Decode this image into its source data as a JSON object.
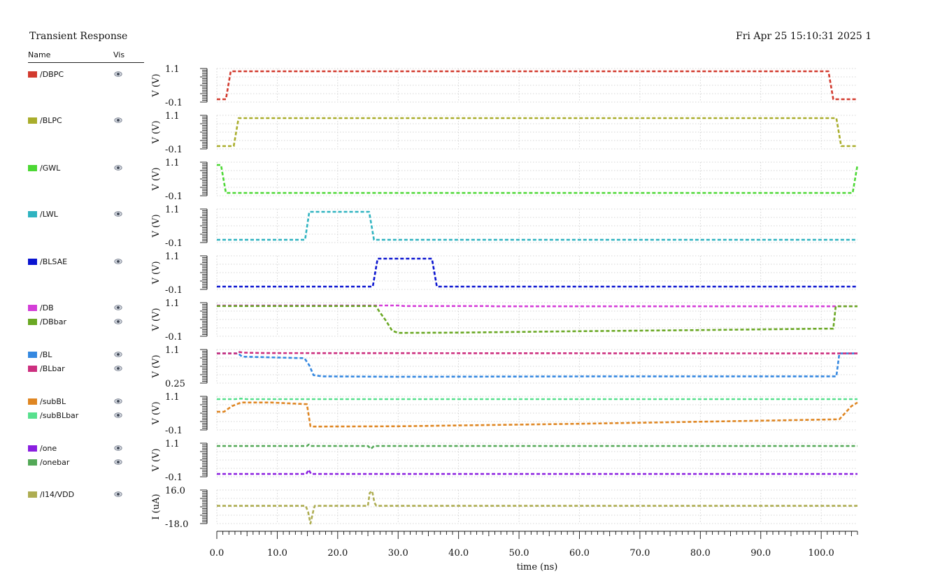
{
  "header": {
    "title": "Transient Response",
    "date": "Fri Apr 25 15:10:31 2025  1"
  },
  "legend": {
    "name_header": "Name",
    "vis_header": "Vis"
  },
  "chart_data": {
    "type": "line",
    "xlabel": "time (ns)",
    "xlim": [
      0,
      106
    ],
    "xticks": [
      "0.0",
      "10.0",
      "20.0",
      "30.0",
      "40.0",
      "50.0",
      "60.0",
      "70.0",
      "80.0",
      "90.0",
      "100.0"
    ],
    "xtick_values": [
      0,
      10,
      20,
      30,
      40,
      50,
      60,
      70,
      80,
      90,
      100
    ],
    "grid": true,
    "line_style": "dashed",
    "panels": [
      {
        "ylabel": "V (V)",
        "ymax_label": "1.1",
        "ymin_label": "-0.1",
        "ylim": [
          -0.1,
          1.1
        ],
        "series": [
          {
            "name": "/DBPC",
            "color": "#d23a2e",
            "points": [
              [
                0,
                0
              ],
              [
                1.5,
                0
              ],
              [
                2.3,
                1.0
              ],
              [
                101.2,
                1.0
              ],
              [
                102,
                0
              ],
              [
                106,
                0
              ]
            ]
          }
        ]
      },
      {
        "ylabel": "V (V)",
        "ymax_label": "1.1",
        "ymin_label": "-0.1",
        "ylim": [
          -0.1,
          1.1
        ],
        "series": [
          {
            "name": "/BLPC",
            "color": "#a9ad2b",
            "points": [
              [
                0,
                0
              ],
              [
                2.8,
                0
              ],
              [
                3.6,
                1.0
              ],
              [
                102.5,
                1.0
              ],
              [
                103.3,
                0
              ],
              [
                106,
                0
              ]
            ]
          }
        ]
      },
      {
        "ylabel": "V (V)",
        "ymax_label": "1.1",
        "ymin_label": "-0.1",
        "ylim": [
          -0.1,
          1.1
        ],
        "series": [
          {
            "name": "/GWL",
            "color": "#4cd834",
            "points": [
              [
                0,
                1.0
              ],
              [
                0.7,
                1.0
              ],
              [
                1.5,
                0
              ],
              [
                105.2,
                0
              ],
              [
                106,
                1.0
              ]
            ]
          }
        ]
      },
      {
        "ylabel": "V (V)",
        "ymax_label": "1.1",
        "ymin_label": "-0.1",
        "ylim": [
          -0.1,
          1.1
        ],
        "series": [
          {
            "name": "/LWL",
            "color": "#2fb3c0",
            "points": [
              [
                0,
                0
              ],
              [
                14.6,
                0
              ],
              [
                15.3,
                1.0
              ],
              [
                25.2,
                1.0
              ],
              [
                26,
                0
              ],
              [
                106,
                0
              ]
            ]
          }
        ]
      },
      {
        "ylabel": "V (V)",
        "ymax_label": "1.1",
        "ymin_label": "-0.1",
        "ylim": [
          -0.1,
          1.1
        ],
        "series": [
          {
            "name": "/BLSAE",
            "color": "#0a14d0",
            "points": [
              [
                0,
                0
              ],
              [
                25.8,
                0
              ],
              [
                26.6,
                1.0
              ],
              [
                35.6,
                1.0
              ],
              [
                36.4,
                0
              ],
              [
                106,
                0
              ]
            ]
          }
        ]
      },
      {
        "ylabel": "V (V)",
        "ymax_label": "1.1",
        "ymin_label": "-0.1",
        "ylim": [
          -0.1,
          1.1
        ],
        "series": [
          {
            "name": "/DB",
            "color": "#d43ed8",
            "points": [
              [
                0,
                1.0
              ],
              [
                30,
                1.0
              ],
              [
                31,
                0.98
              ],
              [
                45,
                0.98
              ],
              [
                46,
                0.97
              ],
              [
                106,
                0.97
              ]
            ]
          },
          {
            "name": "/DBbar",
            "color": "#6aa824",
            "points": [
              [
                0,
                0.98
              ],
              [
                26.3,
                0.98
              ],
              [
                27,
                0.75
              ],
              [
                28,
                0.45
              ],
              [
                29,
                0.1
              ],
              [
                30,
                0.02
              ],
              [
                40,
                0.03
              ],
              [
                60,
                0.08
              ],
              [
                80,
                0.12
              ],
              [
                100,
                0.17
              ],
              [
                102,
                0.17
              ],
              [
                102.4,
                0.97
              ],
              [
                106,
                0.97
              ]
            ]
          }
        ]
      },
      {
        "ylabel": "V (V)",
        "ymax_label": "1.1",
        "ymin_label": "0.25",
        "ylim": [
          0.25,
          1.1
        ],
        "series": [
          {
            "name": "/BL",
            "color": "#3588e0",
            "points": [
              [
                0,
                1.0
              ],
              [
                3.5,
                1.0
              ],
              [
                4.2,
                0.92
              ],
              [
                14.5,
                0.88
              ],
              [
                15.3,
                0.7
              ],
              [
                16,
                0.45
              ],
              [
                17.5,
                0.42
              ],
              [
                30,
                0.41
              ],
              [
                65,
                0.42
              ],
              [
                102.5,
                0.42
              ],
              [
                103,
                1.0
              ],
              [
                106,
                1.0
              ]
            ]
          },
          {
            "name": "/BLbar",
            "color": "#cc2f7f",
            "points": [
              [
                0,
                1.0
              ],
              [
                3.3,
                1.0
              ],
              [
                3.6,
                1.04
              ],
              [
                4.5,
                1.02
              ],
              [
                8,
                1.01
              ],
              [
                106,
                1.0
              ]
            ]
          }
        ]
      },
      {
        "ylabel": "V (V)",
        "ymax_label": "1.1",
        "ymin_label": "-0.1",
        "ylim": [
          -0.1,
          1.1
        ],
        "series": [
          {
            "name": "/subBL",
            "color": "#df8622",
            "points": [
              [
                0,
                0.55
              ],
              [
                1.2,
                0.55
              ],
              [
                2.5,
                0.75
              ],
              [
                4,
                0.88
              ],
              [
                9,
                0.88
              ],
              [
                14.9,
                0.82
              ],
              [
                15.5,
                0.03
              ],
              [
                16,
                0.02
              ],
              [
                30,
                0.03
              ],
              [
                60,
                0.12
              ],
              [
                90,
                0.23
              ],
              [
                103,
                0.28
              ],
              [
                105,
                0.75
              ],
              [
                106,
                0.88
              ]
            ]
          },
          {
            "name": "/subBLbar",
            "color": "#58e08e",
            "points": [
              [
                0,
                1.0
              ],
              [
                3,
                1.0
              ],
              [
                4,
                1.02
              ],
              [
                5,
                1.0
              ],
              [
                106,
                1.0
              ]
            ]
          }
        ]
      },
      {
        "ylabel": "V (V)",
        "ymax_label": "1.1",
        "ymin_label": "-0.1",
        "ylim": [
          -0.1,
          1.1
        ],
        "series": [
          {
            "name": "/one",
            "color": "#8a1fe0",
            "points": [
              [
                0,
                0
              ],
              [
                14.8,
                0
              ],
              [
                15.2,
                0.15
              ],
              [
                15.6,
                0
              ],
              [
                106,
                0
              ]
            ]
          },
          {
            "name": "/onebar",
            "color": "#53a857",
            "points": [
              [
                0,
                1.0
              ],
              [
                14.9,
                1.0
              ],
              [
                15.2,
                1.05
              ],
              [
                15.5,
                1.0
              ],
              [
                25,
                1.0
              ],
              [
                25.5,
                0.9
              ],
              [
                26,
                1.0
              ],
              [
                106,
                1.0
              ]
            ]
          }
        ]
      },
      {
        "ylabel": "I (uA)",
        "ymax_label": "16.0",
        "ymin_label": "-18.0",
        "ylim": [
          -18,
          16
        ],
        "series": [
          {
            "name": "/I14/VDD",
            "color": "#aead52",
            "points": [
              [
                0,
                0
              ],
              [
                14.7,
                0
              ],
              [
                15.1,
                -6
              ],
              [
                15.5,
                -18
              ],
              [
                16,
                -4
              ],
              [
                16.2,
                0
              ],
              [
                25,
                0
              ],
              [
                25.3,
                13
              ],
              [
                25.7,
                15
              ],
              [
                26.1,
                3
              ],
              [
                26.4,
                0
              ],
              [
                106,
                0
              ]
            ]
          }
        ]
      }
    ]
  }
}
